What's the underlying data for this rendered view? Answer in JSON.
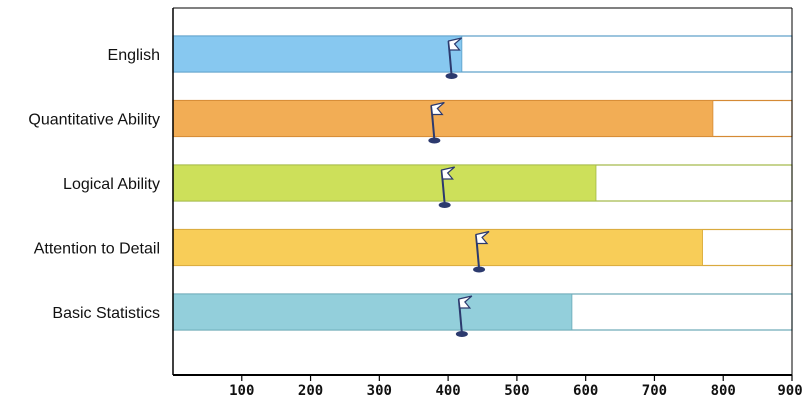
{
  "chart_data": {
    "type": "bar",
    "orientation": "horizontal",
    "categories": [
      "English",
      "Quantitative Ability",
      "Logical Ability",
      "Attention to Detail",
      "Basic Statistics"
    ],
    "series": [
      {
        "values": [
          420,
          785,
          615,
          770,
          580
        ]
      }
    ],
    "markers": [
      {
        "type": "flag",
        "values": [
          405,
          380,
          395,
          445,
          420
        ]
      }
    ],
    "max_values": [
      900,
      900,
      900,
      900,
      900
    ],
    "xlim": [
      0,
      900
    ],
    "xticks": [
      100,
      200,
      300,
      400,
      500,
      600,
      700,
      800,
      900
    ],
    "xtick_labels": [
      "100",
      "200",
      "300",
      "400",
      "500",
      "600",
      "700",
      "800",
      "900"
    ],
    "bar_colors": [
      "#87c8f0",
      "#f2ad55",
      "#cde05a",
      "#f8cd58",
      "#93cfdb"
    ],
    "bar_border_colors": [
      "#5a9ec7",
      "#d58a35",
      "#a2b845",
      "#d9aa3e",
      "#6aa8b6"
    ],
    "title": "",
    "xlabel": "",
    "ylabel": "",
    "grid": false,
    "legend": "none"
  }
}
